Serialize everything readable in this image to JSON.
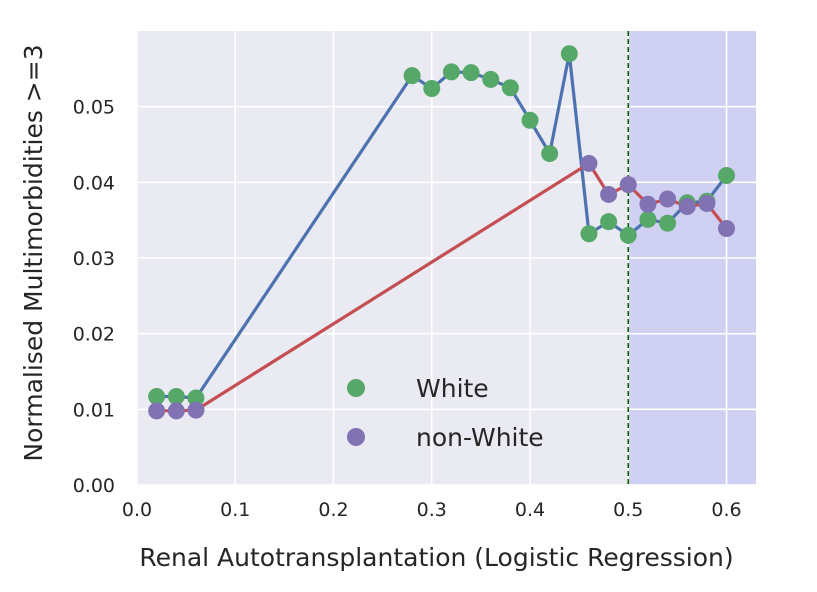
{
  "chart_data": {
    "type": "line",
    "xlabel": "Renal Autotransplantation (Logistic Regression)",
    "ylabel": "Normalised Multimorbidities >=3",
    "xlim": [
      0.0,
      0.63
    ],
    "ylim": [
      0.0,
      0.06
    ],
    "x_ticks": [
      0.0,
      0.1,
      0.2,
      0.3,
      0.4,
      0.5,
      0.6
    ],
    "x_tick_labels": [
      "0.0",
      "0.1",
      "0.2",
      "0.3",
      "0.4",
      "0.5",
      "0.6"
    ],
    "y_ticks": [
      0.0,
      0.01,
      0.02,
      0.03,
      0.04,
      0.05
    ],
    "y_tick_labels": [
      "0.00",
      "0.01",
      "0.02",
      "0.03",
      "0.04",
      "0.05"
    ],
    "grid": true,
    "threshold": 0.5,
    "shaded_region": [
      0.5,
      0.63
    ],
    "legend_position": "lower-center",
    "colors": {
      "background": "#eaeaf2",
      "grid": "#ffffff",
      "shade": "#d0d0f2",
      "threshold_line": "#006400",
      "white_line": "#4c72b0",
      "white_marker": "#55a868",
      "nonwhite_line": "#c44e52",
      "nonwhite_marker": "#8172b3"
    },
    "series": [
      {
        "name": "White",
        "key": "white",
        "x": [
          0.02,
          0.04,
          0.06,
          0.28,
          0.3,
          0.32,
          0.34,
          0.36,
          0.38,
          0.4,
          0.42,
          0.44,
          0.46,
          0.48,
          0.5,
          0.52,
          0.54,
          0.56,
          0.58,
          0.6
        ],
        "y": [
          0.0117,
          0.0117,
          0.0115,
          0.0541,
          0.0524,
          0.0546,
          0.0545,
          0.0536,
          0.0525,
          0.0482,
          0.0438,
          0.057,
          0.0332,
          0.0348,
          0.033,
          0.0351,
          0.0346,
          0.0373,
          0.0375,
          0.0409
        ]
      },
      {
        "name": "non-White",
        "key": "nonwhite",
        "x": [
          0.02,
          0.04,
          0.06,
          0.46,
          0.48,
          0.5,
          0.52,
          0.54,
          0.56,
          0.58,
          0.6
        ],
        "y": [
          0.0098,
          0.0098,
          0.0099,
          0.0425,
          0.0384,
          0.0397,
          0.0371,
          0.0378,
          0.0368,
          0.0372,
          0.0339
        ]
      }
    ]
  }
}
